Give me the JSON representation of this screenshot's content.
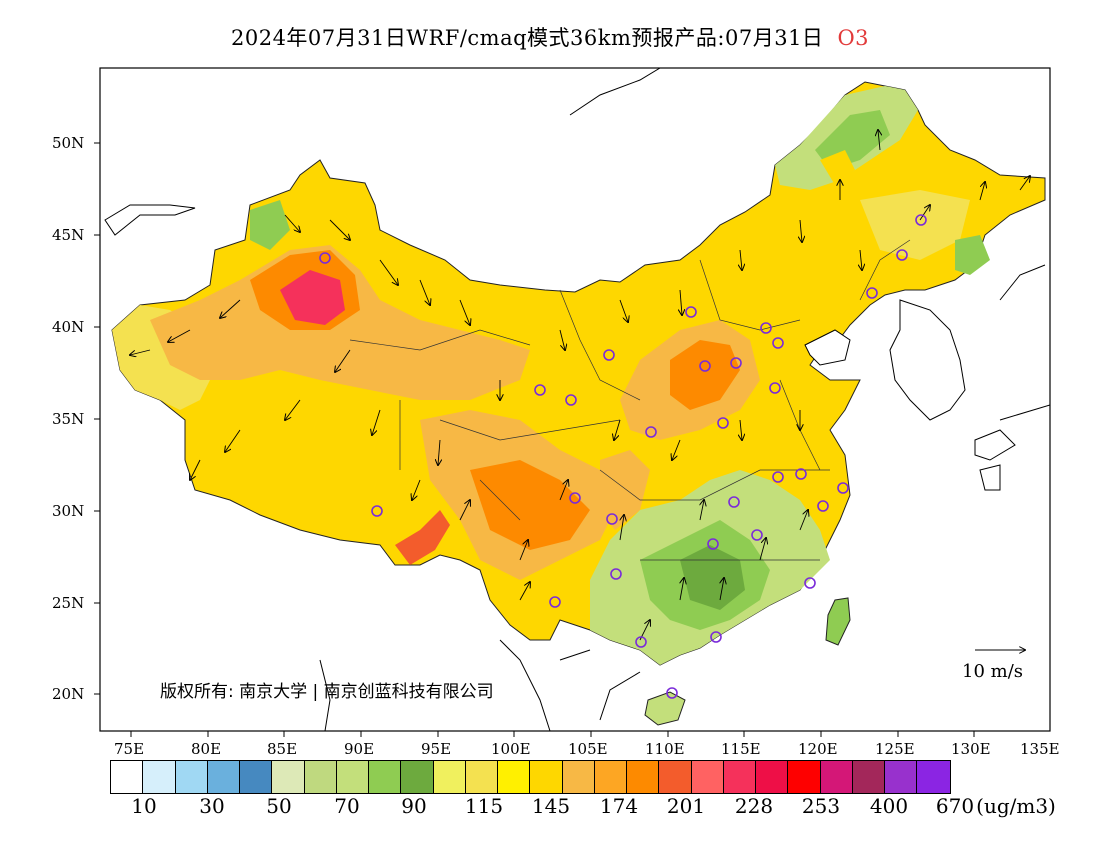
{
  "title": {
    "main": "2024年07月31日WRF/cmaq模式36km预报产品:07月31日",
    "species": "O3"
  },
  "map": {
    "lon_ticks": [
      "75E",
      "80E",
      "85E",
      "90E",
      "95E",
      "100E",
      "105E",
      "110E",
      "115E",
      "120E",
      "125E",
      "130E",
      "135E"
    ],
    "lat_ticks": [
      "50N",
      "45N",
      "40N",
      "35N",
      "30N",
      "25N",
      "20N"
    ],
    "wind_reference": "10 m/s",
    "copyright": "版权所有: 南京大学 | 南京创蓝科技有限公司"
  },
  "legend": {
    "colors": [
      "#ffffff",
      "#d6effb",
      "#a0d8f3",
      "#6ab0dd",
      "#4689c0",
      "#dde9b7",
      "#bfd97f",
      "#c3df7b",
      "#8fcc52",
      "#6daa3e",
      "#f0f05e",
      "#f4e150",
      "#fff000",
      "#fed700",
      "#f7b845",
      "#fda623",
      "#fd8a00",
      "#f35c2c",
      "#ff6262",
      "#f5315b",
      "#ee0f47",
      "#fe0000",
      "#d41777",
      "#a3275a",
      "#9831cd",
      "#8b25e3"
    ],
    "labels": [
      "10",
      "30",
      "50",
      "70",
      "90",
      "115",
      "145",
      "174",
      "201",
      "228",
      "253",
      "400",
      "670"
    ],
    "unit": "(ug/m3)"
  }
}
